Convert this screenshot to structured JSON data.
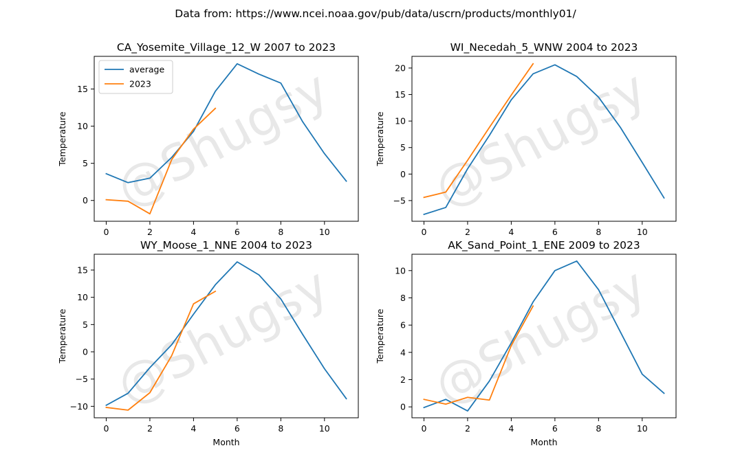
{
  "suptitle": "Data from: https://www.ncei.noaa.gov/pub/data/uscrn/products/monthly01/",
  "watermark": "@Shugsy",
  "colors": {
    "average": "#1f77b4",
    "2023": "#ff7f0e"
  },
  "chart_data": [
    {
      "type": "line",
      "title": "CA_Yosemite_Village_12_W 2007 to 2023",
      "xlabel": "",
      "ylabel": "Temperature",
      "xlim": [
        -0.55,
        11.55
      ],
      "ylim": [
        -2.8,
        19.4
      ],
      "xticks": [
        0,
        2,
        4,
        6,
        8,
        10
      ],
      "yticks": [
        0,
        5,
        10,
        15
      ],
      "legend": {
        "show": true,
        "placement": "upper-left"
      },
      "series": [
        {
          "name": "average",
          "x": [
            0,
            1,
            2,
            3,
            4,
            5,
            6,
            7,
            8,
            9,
            10,
            11
          ],
          "values": [
            3.6,
            2.4,
            3.0,
            5.8,
            9.3,
            14.7,
            18.4,
            17.0,
            15.8,
            10.6,
            6.3,
            2.6
          ]
        },
        {
          "name": "2023",
          "x": [
            0,
            1,
            2,
            3,
            4,
            5
          ],
          "values": [
            0.1,
            -0.1,
            -1.8,
            5.5,
            9.6,
            12.4
          ]
        }
      ]
    },
    {
      "type": "line",
      "title": "WI_Necedah_5_WNW 2004 to 2023",
      "xlabel": "",
      "ylabel": "Temperature",
      "xlim": [
        -0.55,
        11.55
      ],
      "ylim": [
        -8.9,
        22.2
      ],
      "xticks": [
        0,
        2,
        4,
        6,
        8,
        10
      ],
      "yticks": [
        -5,
        0,
        5,
        10,
        15,
        20
      ],
      "legend": {
        "show": false
      },
      "series": [
        {
          "name": "average",
          "x": [
            0,
            1,
            2,
            3,
            4,
            5,
            6,
            7,
            8,
            9,
            10,
            11
          ],
          "values": [
            -7.6,
            -6.3,
            1.0,
            7.3,
            14.0,
            18.9,
            20.6,
            18.4,
            14.5,
            8.8,
            2.2,
            -4.5
          ]
        },
        {
          "name": "2023",
          "x": [
            0,
            1,
            2,
            3,
            4,
            5
          ],
          "values": [
            -4.4,
            -3.4,
            2.6,
            8.8,
            14.9,
            20.8
          ]
        }
      ]
    },
    {
      "type": "line",
      "title": "WY_Moose_1_NNE 2004 to 2023",
      "xlabel": "Month",
      "ylabel": "Temperature",
      "xlim": [
        -0.55,
        11.55
      ],
      "ylim": [
        -12.1,
        17.9
      ],
      "xticks": [
        0,
        2,
        4,
        6,
        8,
        10
      ],
      "yticks": [
        -10,
        -5,
        0,
        5,
        10,
        15
      ],
      "legend": {
        "show": false
      },
      "series": [
        {
          "name": "average",
          "x": [
            0,
            1,
            2,
            3,
            4,
            5,
            6,
            7,
            8,
            9,
            10,
            11
          ],
          "values": [
            -9.8,
            -7.6,
            -2.9,
            1.3,
            6.9,
            12.3,
            16.5,
            14.1,
            9.7,
            3.2,
            -3.1,
            -8.6
          ]
        },
        {
          "name": "2023",
          "x": [
            0,
            1,
            2,
            3,
            4,
            5
          ],
          "values": [
            -10.2,
            -10.7,
            -7.5,
            -0.7,
            8.8,
            11.1
          ]
        }
      ]
    },
    {
      "type": "line",
      "title": "AK_Sand_Point_1_ENE 2009 to 2023",
      "xlabel": "Month",
      "ylabel": "Temperature",
      "xlim": [
        -0.55,
        11.55
      ],
      "ylim": [
        -0.8,
        11.2
      ],
      "xticks": [
        0,
        2,
        4,
        6,
        8,
        10
      ],
      "yticks": [
        0,
        2,
        4,
        6,
        8,
        10
      ],
      "legend": {
        "show": false
      },
      "series": [
        {
          "name": "average",
          "x": [
            0,
            1,
            2,
            3,
            4,
            5,
            6,
            7,
            8,
            9,
            10,
            11
          ],
          "values": [
            -0.05,
            0.55,
            -0.3,
            1.9,
            4.7,
            7.7,
            10.0,
            10.7,
            8.6,
            5.5,
            2.4,
            1.0
          ]
        },
        {
          "name": "2023",
          "x": [
            0,
            1,
            2,
            3,
            4,
            5
          ],
          "values": [
            0.55,
            0.2,
            0.7,
            0.5,
            4.5,
            7.4
          ]
        }
      ]
    }
  ]
}
